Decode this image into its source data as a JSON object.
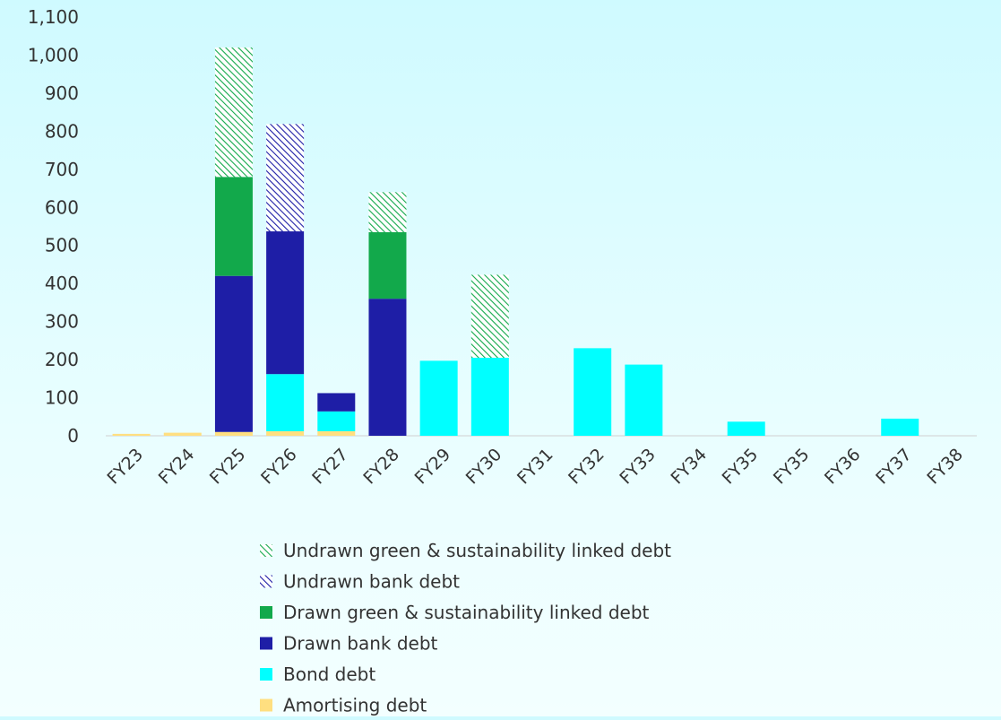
{
  "chart_data": {
    "type": "bar",
    "stacked": true,
    "title": "",
    "xlabel": "",
    "ylabel": "",
    "ylim": [
      0,
      1100
    ],
    "yticks": [
      "0",
      "100",
      "200",
      "300",
      "400",
      "500",
      "600",
      "700",
      "800",
      "900",
      "1,000",
      "1,100"
    ],
    "ytick_values": [
      0,
      100,
      200,
      300,
      400,
      500,
      600,
      700,
      800,
      900,
      1000,
      1100
    ],
    "grid": false,
    "legend_position": "bottom",
    "categories": [
      "FY23",
      "FY24",
      "FY25",
      "FY26",
      "FY27",
      "FY28",
      "FY29",
      "FY30",
      "FY31",
      "FY32",
      "FY33",
      "FY34",
      "FY35",
      "FY35",
      "FY36",
      "FY37",
      "FY38"
    ],
    "series": [
      {
        "name": "Amortising debt",
        "color": "#ffdf80",
        "pattern": "solid",
        "values": [
          5,
          8,
          10,
          12,
          12,
          0,
          0,
          0,
          0,
          0,
          0,
          0,
          0,
          0,
          0,
          0,
          0
        ]
      },
      {
        "name": "Bond debt",
        "color": "#00ffff",
        "pattern": "solid",
        "values": [
          0,
          0,
          0,
          150,
          52,
          0,
          197,
          205,
          0,
          230,
          187,
          0,
          37,
          0,
          0,
          45,
          0
        ]
      },
      {
        "name": "Drawn bank debt",
        "color": "#1e1ea6",
        "pattern": "solid",
        "values": [
          0,
          0,
          410,
          375,
          48,
          360,
          0,
          0,
          0,
          0,
          0,
          0,
          0,
          0,
          0,
          0,
          0
        ]
      },
      {
        "name": "Drawn green & sustainability linked  debt",
        "color": "#12a94b",
        "pattern": "solid",
        "values": [
          0,
          0,
          260,
          0,
          0,
          175,
          0,
          0,
          0,
          0,
          0,
          0,
          0,
          0,
          0,
          0,
          0
        ]
      },
      {
        "name": "Undrawn bank debt",
        "color": "#1e1ea6",
        "pattern": "hatch",
        "values": [
          0,
          0,
          0,
          282,
          0,
          0,
          0,
          0,
          0,
          0,
          0,
          0,
          0,
          0,
          0,
          0,
          0
        ]
      },
      {
        "name": "Undrawn green & sustainability linked debt",
        "color": "#12a94b",
        "pattern": "hatch",
        "values": [
          0,
          0,
          340,
          0,
          0,
          105,
          0,
          218,
          0,
          0,
          0,
          0,
          0,
          0,
          0,
          0,
          0
        ]
      }
    ],
    "legend_order": [
      "Undrawn green & sustainability linked debt",
      "Undrawn bank debt",
      "Drawn green & sustainability linked  debt",
      "Drawn bank debt",
      "Bond debt",
      "Amortising debt"
    ]
  }
}
